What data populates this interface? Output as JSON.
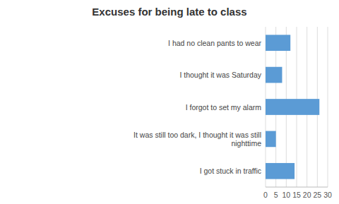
{
  "chart_data": {
    "type": "bar",
    "orientation": "horizontal",
    "title": "Excuses for being late to class",
    "categories": [
      "I got stuck in traffic",
      "It was still too dark, I thought it was still\nnighttime",
      "I forgot to set my alarm",
      "I thought it was Saturday",
      "I had no clean pants to wear"
    ],
    "values": [
      14,
      5,
      26,
      8,
      12
    ],
    "color": "#5b9bd5",
    "xlim": [
      0,
      30
    ],
    "xticks": [
      0,
      5,
      10,
      15,
      20,
      25,
      30
    ],
    "grid": true
  }
}
